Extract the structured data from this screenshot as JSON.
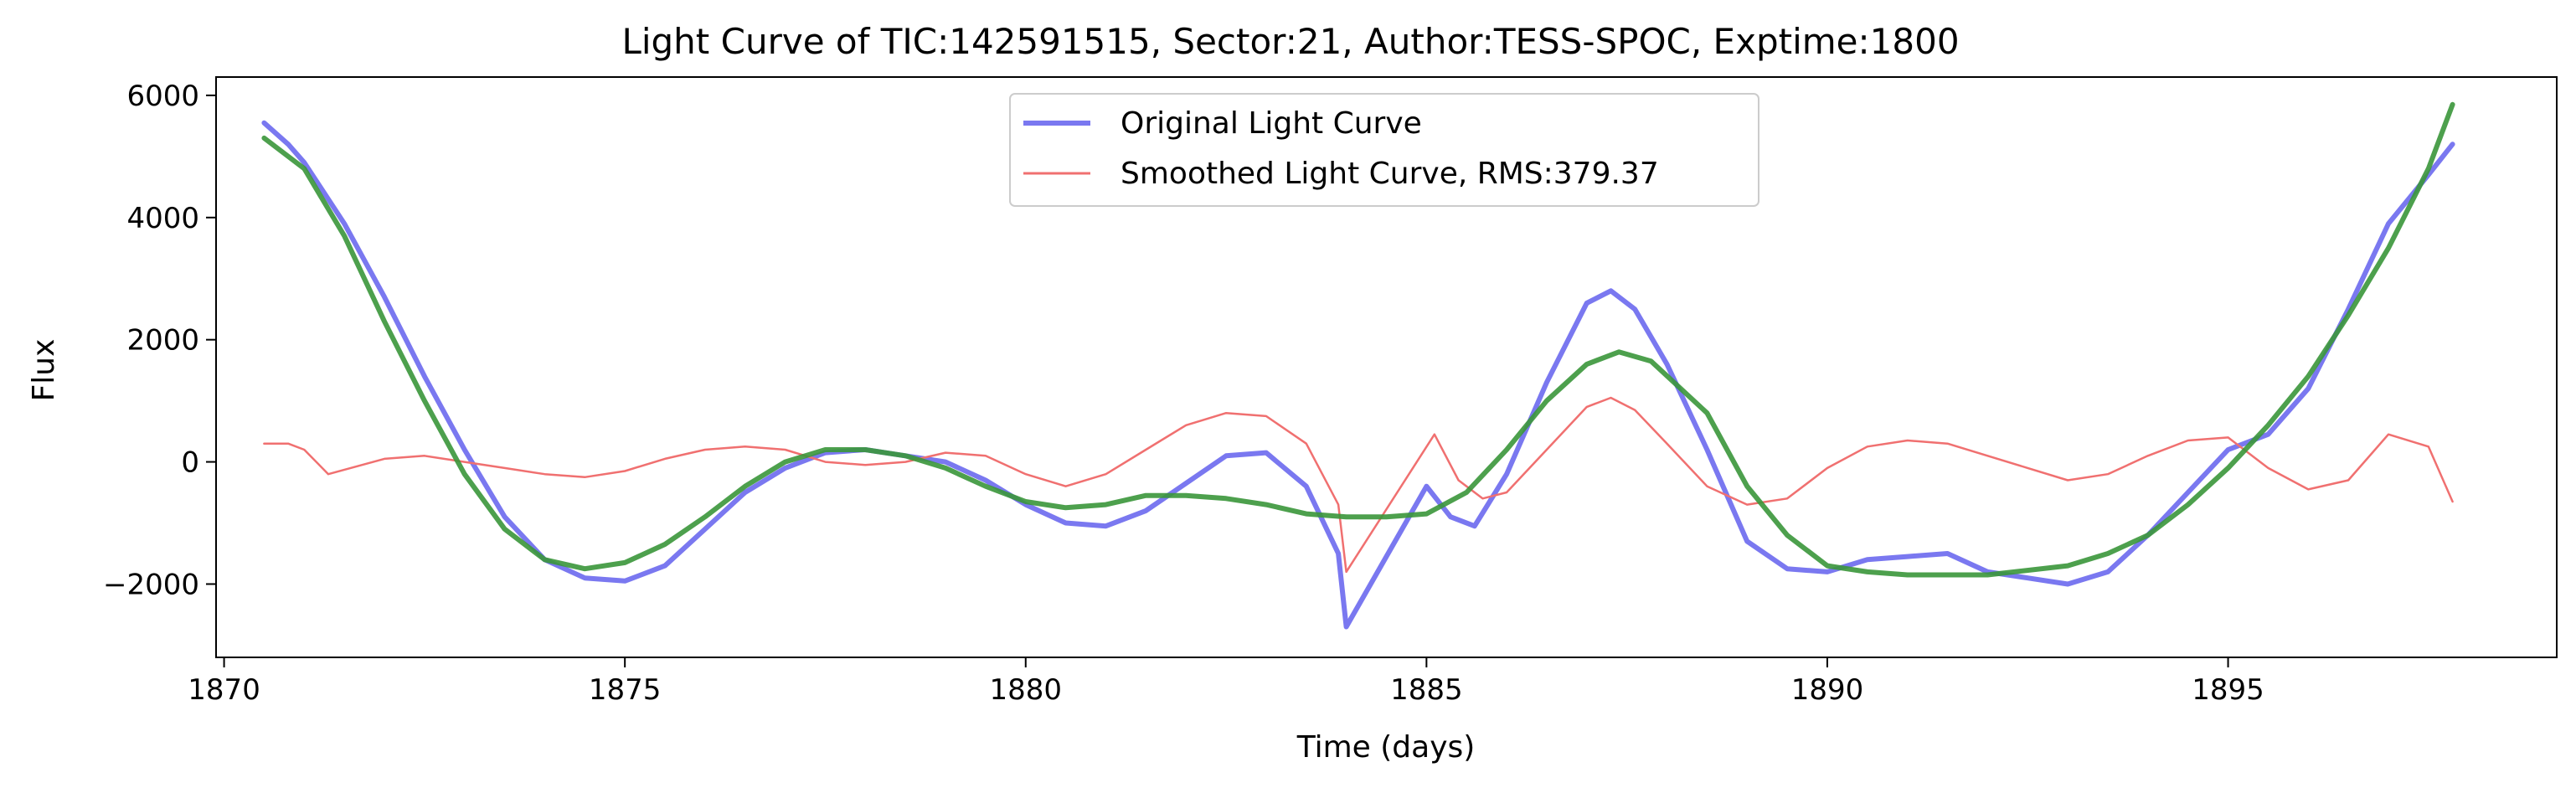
{
  "chart_data": {
    "type": "line",
    "title": "Light Curve of TIC:142591515, Sector:21, Author:TESS-SPOC, Exptime:1800",
    "xlabel": "Time (days)",
    "ylabel": "Flux",
    "xlim": [
      1869.9,
      1899.1
    ],
    "ylim": [
      -3200,
      6300
    ],
    "xticks": [
      1870,
      1875,
      1880,
      1885,
      1890,
      1895
    ],
    "yticks": [
      -2000,
      0,
      2000,
      4000,
      6000
    ],
    "xtick_labels": [
      "1870",
      "1875",
      "1880",
      "1885",
      "1890",
      "1895"
    ],
    "ytick_labels": [
      "−2000",
      "0",
      "2000",
      "4000",
      "6000"
    ],
    "legend_position": "upper-center",
    "grid": false,
    "series": [
      {
        "name": "Original Light Curve",
        "color": "#7a78f0",
        "x": [
          1870.5,
          1870.8,
          1871.0,
          1871.5,
          1872.0,
          1872.5,
          1873.0,
          1873.5,
          1874.0,
          1874.5,
          1875.0,
          1875.5,
          1876.0,
          1876.5,
          1877.0,
          1877.5,
          1878.0,
          1878.5,
          1879.0,
          1879.5,
          1880.0,
          1880.5,
          1881.0,
          1881.5,
          1882.0,
          1882.5,
          1883.0,
          1883.5,
          1883.9,
          1884.0,
          1885.0,
          1885.3,
          1885.6,
          1886.0,
          1886.5,
          1887.0,
          1887.3,
          1887.6,
          1888.0,
          1888.5,
          1889.0,
          1889.5,
          1890.0,
          1890.5,
          1891.0,
          1891.5,
          1892.0,
          1892.5,
          1893.0,
          1893.5,
          1894.0,
          1894.5,
          1895.0,
          1895.5,
          1896.0,
          1896.5,
          1897.0,
          1897.5,
          1897.8
        ],
        "values": [
          5550,
          5200,
          4900,
          3900,
          2700,
          1400,
          200,
          -900,
          -1600,
          -1900,
          -1950,
          -1700,
          -1100,
          -500,
          -100,
          150,
          200,
          100,
          0,
          -300,
          -700,
          -1000,
          -1050,
          -800,
          -350,
          100,
          150,
          -400,
          -1500,
          -2700,
          -400,
          -900,
          -1050,
          -200,
          1300,
          2600,
          2800,
          2500,
          1600,
          200,
          -1300,
          -1750,
          -1800,
          -1600,
          -1550,
          -1500,
          -1800,
          -1900,
          -2000,
          -1800,
          -1200,
          -500,
          200,
          450,
          1200,
          2500,
          3900,
          4700,
          5200
        ]
      },
      {
        "name": "Smoothed Light Curve, RMS:379.37",
        "color": "#f07070",
        "x": [
          1870.5,
          1870.8,
          1871.0,
          1871.3,
          1872.0,
          1872.5,
          1873.0,
          1873.5,
          1874.0,
          1874.5,
          1875.0,
          1875.5,
          1876.0,
          1876.5,
          1877.0,
          1877.5,
          1878.0,
          1878.5,
          1879.0,
          1879.5,
          1880.0,
          1880.5,
          1881.0,
          1881.5,
          1882.0,
          1882.5,
          1883.0,
          1883.5,
          1883.9,
          1884.0,
          1885.1,
          1885.4,
          1885.7,
          1886.0,
          1886.5,
          1887.0,
          1887.3,
          1887.6,
          1888.0,
          1888.5,
          1889.0,
          1889.5,
          1890.0,
          1890.5,
          1891.0,
          1891.5,
          1892.0,
          1892.5,
          1893.0,
          1893.5,
          1894.0,
          1894.5,
          1895.0,
          1895.5,
          1896.0,
          1896.5,
          1897.0,
          1897.5,
          1897.8
        ],
        "values": [
          300,
          300,
          200,
          -200,
          50,
          100,
          0,
          -100,
          -200,
          -250,
          -150,
          50,
          200,
          250,
          200,
          0,
          -50,
          0,
          150,
          100,
          -200,
          -400,
          -200,
          200,
          600,
          800,
          750,
          300,
          -700,
          -1800,
          450,
          -300,
          -600,
          -500,
          200,
          900,
          1050,
          850,
          300,
          -400,
          -700,
          -600,
          -100,
          250,
          350,
          300,
          100,
          -100,
          -300,
          -200,
          100,
          350,
          400,
          -100,
          -450,
          -300,
          450,
          250,
          -650
        ]
      },
      {
        "name": "",
        "color": "#3a963a",
        "x": [
          1870.5,
          1871.0,
          1871.5,
          1872.0,
          1872.5,
          1873.0,
          1873.5,
          1874.0,
          1874.5,
          1875.0,
          1875.5,
          1876.0,
          1876.5,
          1877.0,
          1877.5,
          1878.0,
          1878.5,
          1879.0,
          1879.5,
          1880.0,
          1880.5,
          1881.0,
          1881.5,
          1882.0,
          1882.5,
          1883.0,
          1883.5,
          1884.0,
          1884.5,
          1885.0,
          1885.5,
          1886.0,
          1886.5,
          1887.0,
          1887.4,
          1887.8,
          1888.5,
          1889.0,
          1889.5,
          1890.0,
          1890.5,
          1891.0,
          1892.0,
          1893.0,
          1893.5,
          1894.0,
          1894.5,
          1895.0,
          1895.5,
          1896.0,
          1896.5,
          1897.0,
          1897.5,
          1897.8
        ],
        "values": [
          5300,
          4800,
          3700,
          2300,
          1000,
          -200,
          -1100,
          -1600,
          -1750,
          -1650,
          -1350,
          -900,
          -400,
          0,
          200,
          200,
          100,
          -100,
          -400,
          -650,
          -750,
          -700,
          -550,
          -550,
          -600,
          -700,
          -850,
          -900,
          -900,
          -850,
          -500,
          200,
          1000,
          1600,
          1800,
          1650,
          800,
          -400,
          -1200,
          -1700,
          -1800,
          -1850,
          -1850,
          -1700,
          -1500,
          -1200,
          -700,
          -100,
          600,
          1400,
          2400,
          3500,
          4800,
          5850
        ]
      }
    ]
  }
}
